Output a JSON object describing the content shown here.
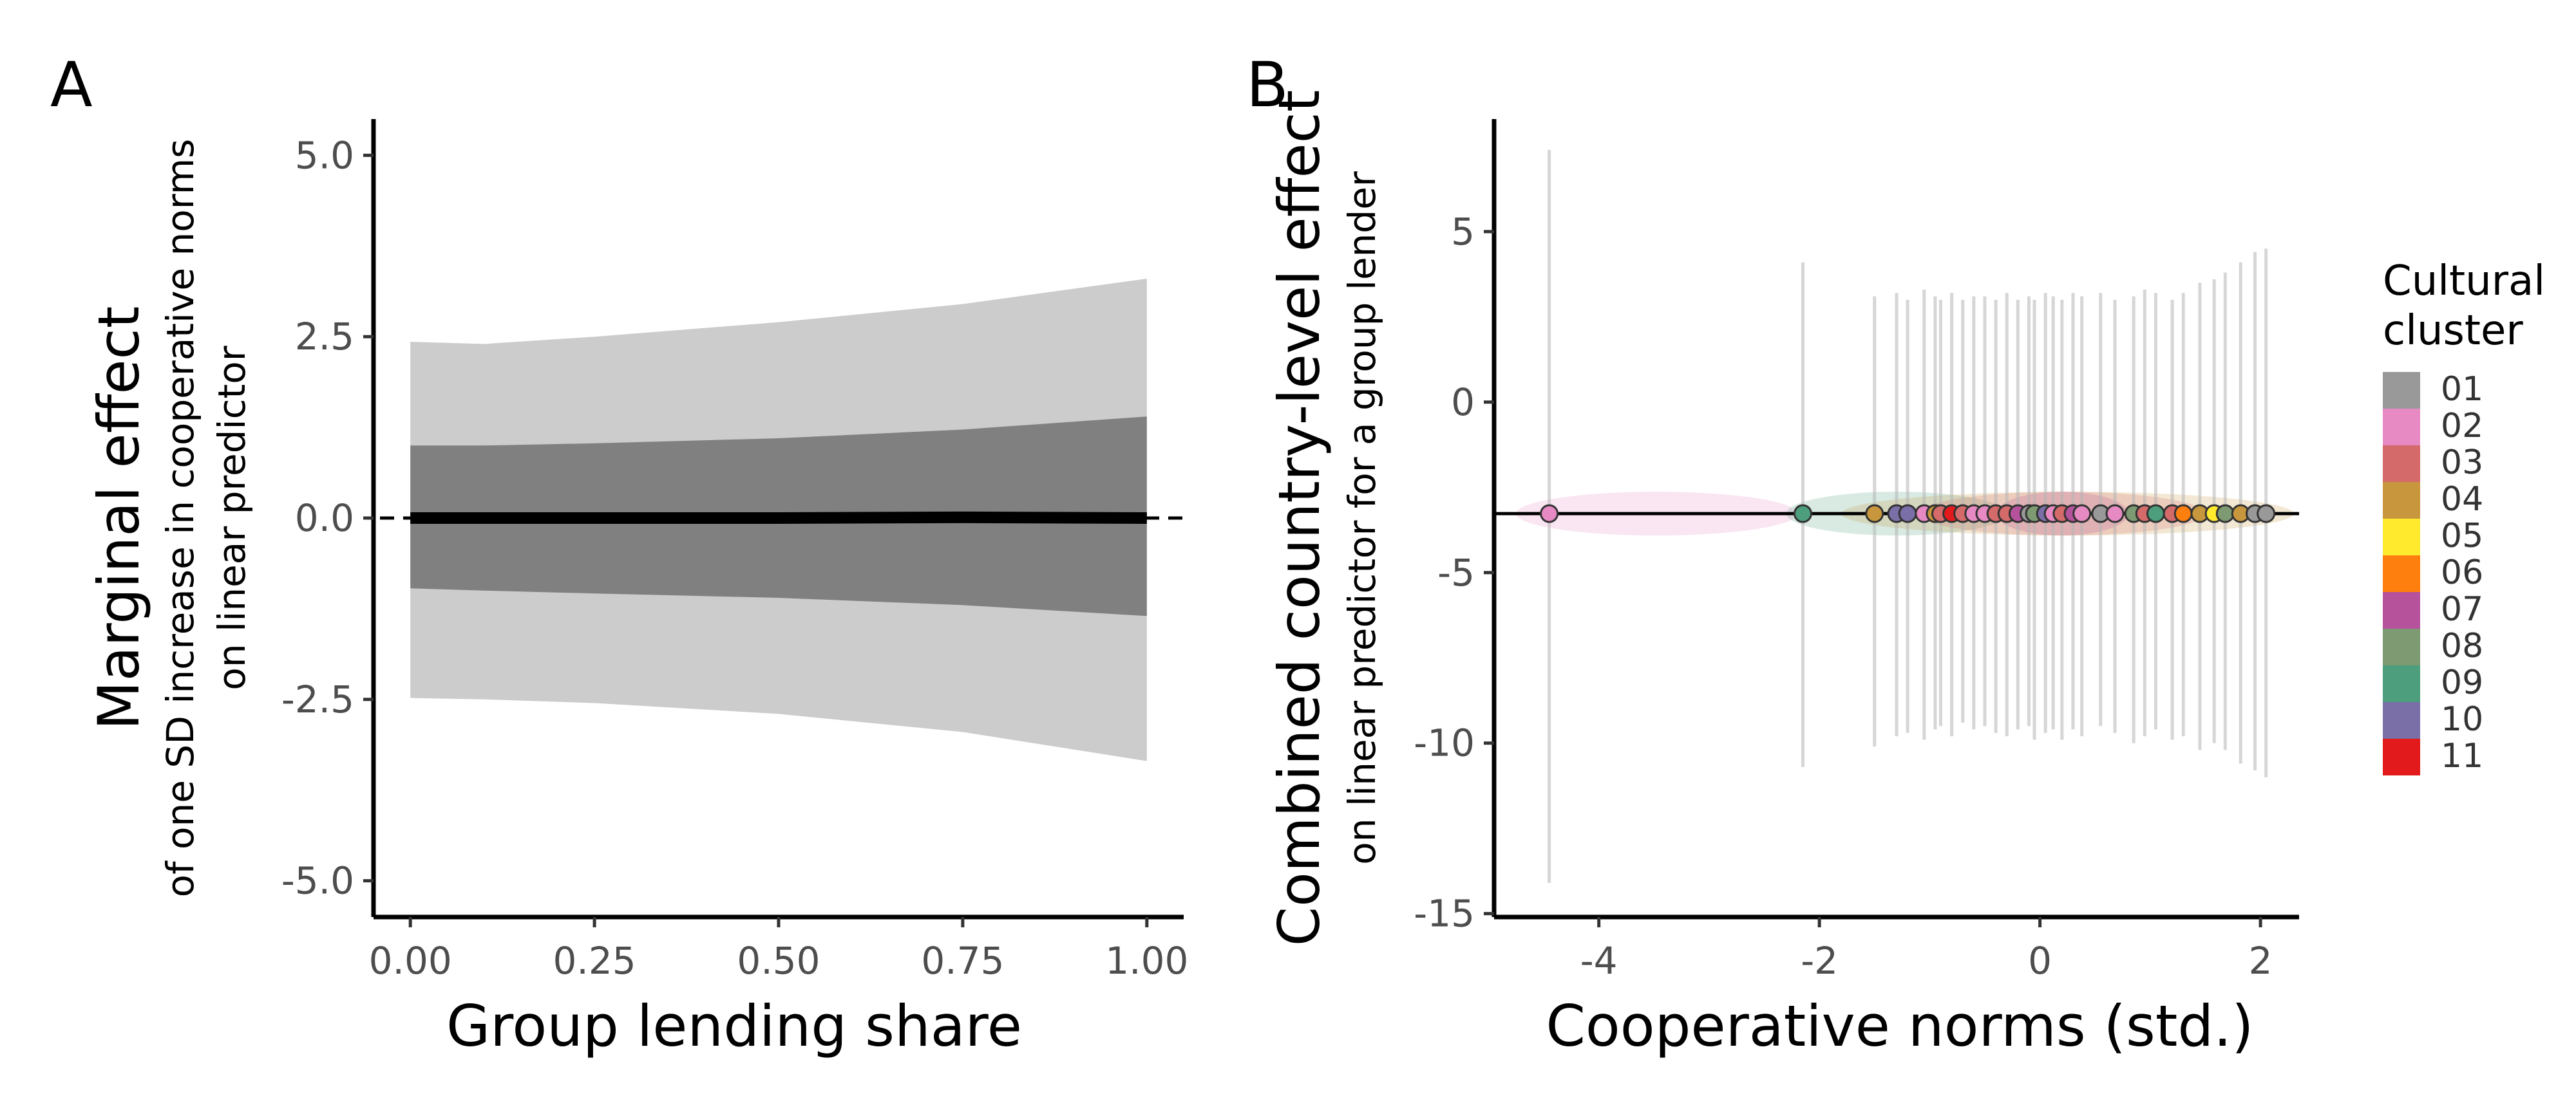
{
  "chart_data": [
    {
      "panel": "A",
      "type": "line",
      "xlabel": "Group lending share",
      "ylabel": "Marginal effect",
      "ylabel_sub": [
        "of one SD increase in cooperative norms",
        "on linear predictor"
      ],
      "xlim": [
        -0.05,
        1.05
      ],
      "ylim": [
        -5.5,
        5.5
      ],
      "x_ticks": [
        "0.00",
        "0.25",
        "0.50",
        "0.75",
        "1.00"
      ],
      "x_tick_values": [
        0,
        0.25,
        0.5,
        0.75,
        1
      ],
      "y_ticks": [
        "-5.0",
        "-2.5",
        "0.0",
        "2.5",
        "5.0"
      ],
      "y_tick_values": [
        -5,
        -2.5,
        0,
        2.5,
        5
      ],
      "reference_line_y": 0,
      "x": [
        0,
        0.1,
        0.25,
        0.5,
        0.75,
        1.0
      ],
      "mean": [
        0.0,
        0.0,
        0.0,
        0.0,
        0.01,
        0.0
      ],
      "inner_band_low": [
        -0.97,
        -1.0,
        -1.04,
        -1.1,
        -1.2,
        -1.35
      ],
      "inner_band_high": [
        1.0,
        1.0,
        1.03,
        1.1,
        1.22,
        1.4
      ],
      "outer_band_low": [
        -2.48,
        -2.5,
        -2.55,
        -2.7,
        -2.95,
        -3.35
      ],
      "outer_band_high": [
        2.43,
        2.4,
        2.5,
        2.7,
        2.95,
        3.3
      ],
      "colors": {
        "inner": "#808080",
        "outer": "#cccccc",
        "line": "#000000"
      }
    },
    {
      "panel": "B",
      "type": "scatter",
      "xlabel": "Cooperative norms (std.)",
      "ylabel": "Combined country-level effect",
      "ylabel_sub": "on linear predictor for a group lender",
      "xlim": [
        -4.95,
        2.35
      ],
      "ylim": [
        -15.1,
        8.3
      ],
      "x_ticks": [
        "-4",
        "-2",
        "0",
        "2"
      ],
      "x_tick_values": [
        -4,
        -2,
        0,
        2
      ],
      "y_ticks": [
        "-15",
        "-10",
        "-5",
        "0",
        "5"
      ],
      "y_tick_values": [
        -15,
        -10,
        -5,
        0,
        5
      ],
      "fitted_line_y": -3.27,
      "legend": {
        "title": [
          "Cultural",
          "cluster"
        ],
        "entries": [
          {
            "label": "01",
            "color": "#999999"
          },
          {
            "label": "02",
            "color": "#e78ac3"
          },
          {
            "label": "03",
            "color": "#d46a6a"
          },
          {
            "label": "04",
            "color": "#c8963c"
          },
          {
            "label": "05",
            "color": "#ffea2e"
          },
          {
            "label": "06",
            "color": "#ff7f0e"
          },
          {
            "label": "07",
            "color": "#b5529b"
          },
          {
            "label": "08",
            "color": "#7d9a72"
          },
          {
            "label": "09",
            "color": "#4c9e7c"
          },
          {
            "label": "10",
            "color": "#7b6fa8"
          },
          {
            "label": "11",
            "color": "#e31a1c"
          }
        ]
      },
      "cluster_regions": [
        {
          "cluster": "02",
          "x": [
            -4.75,
            -2.2
          ]
        },
        {
          "cluster": "09",
          "x": [
            -2.3,
            -0.3
          ]
        },
        {
          "cluster": "04",
          "x": [
            -1.8,
            2.3
          ]
        },
        {
          "cluster": "03",
          "x": [
            -1.1,
            1.5
          ]
        },
        {
          "cluster": "07",
          "x": [
            -0.4,
            0.8
          ]
        }
      ],
      "points": [
        {
          "x": -4.45,
          "y": -3.27,
          "low": -14.1,
          "high": 7.4,
          "cluster": "02"
        },
        {
          "x": -2.15,
          "y": -3.27,
          "low": -10.7,
          "high": 4.1,
          "cluster": "09"
        },
        {
          "x": -1.5,
          "y": -3.27,
          "low": -10.1,
          "high": 3.1,
          "cluster": "04"
        },
        {
          "x": -1.3,
          "y": -3.27,
          "low": -9.8,
          "high": 3.2,
          "cluster": "10"
        },
        {
          "x": -1.2,
          "y": -3.27,
          "low": -9.7,
          "high": 3.0,
          "cluster": "10"
        },
        {
          "x": -1.05,
          "y": -3.27,
          "low": -9.9,
          "high": 3.3,
          "cluster": "02"
        },
        {
          "x": -0.95,
          "y": -3.27,
          "low": -9.6,
          "high": 3.1,
          "cluster": "04"
        },
        {
          "x": -0.9,
          "y": -3.27,
          "low": -9.5,
          "high": 3.0,
          "cluster": "03"
        },
        {
          "x": -0.8,
          "y": -3.27,
          "low": -9.8,
          "high": 3.2,
          "cluster": "11"
        },
        {
          "x": -0.7,
          "y": -3.27,
          "low": -9.4,
          "high": 3.0,
          "cluster": "03"
        },
        {
          "x": -0.6,
          "y": -3.27,
          "low": -9.6,
          "high": 3.1,
          "cluster": "02"
        },
        {
          "x": -0.5,
          "y": -3.27,
          "low": -9.5,
          "high": 3.1,
          "cluster": "02"
        },
        {
          "x": -0.4,
          "y": -3.27,
          "low": -9.7,
          "high": 3.0,
          "cluster": "03"
        },
        {
          "x": -0.3,
          "y": -3.27,
          "low": -9.8,
          "high": 3.2,
          "cluster": "03"
        },
        {
          "x": -0.2,
          "y": -3.27,
          "low": -9.6,
          "high": 3.0,
          "cluster": "07"
        },
        {
          "x": -0.1,
          "y": -3.27,
          "low": -9.5,
          "high": 3.1,
          "cluster": "01"
        },
        {
          "x": -0.05,
          "y": -3.27,
          "low": -9.9,
          "high": 3.0,
          "cluster": "08"
        },
        {
          "x": 0.05,
          "y": -3.27,
          "low": -9.7,
          "high": 3.2,
          "cluster": "10"
        },
        {
          "x": 0.12,
          "y": -3.27,
          "low": -9.6,
          "high": 3.1,
          "cluster": "02"
        },
        {
          "x": 0.2,
          "y": -3.27,
          "low": -9.9,
          "high": 3.0,
          "cluster": "03"
        },
        {
          "x": 0.3,
          "y": -3.27,
          "low": -9.6,
          "high": 3.2,
          "cluster": "07"
        },
        {
          "x": 0.38,
          "y": -3.27,
          "low": -9.8,
          "high": 3.1,
          "cluster": "02"
        },
        {
          "x": 0.55,
          "y": -3.27,
          "low": -9.5,
          "high": 3.2,
          "cluster": "01"
        },
        {
          "x": 0.68,
          "y": -3.27,
          "low": -9.7,
          "high": 3.0,
          "cluster": "02"
        },
        {
          "x": 0.85,
          "y": -3.27,
          "low": -10.0,
          "high": 3.1,
          "cluster": "08"
        },
        {
          "x": 0.95,
          "y": -3.27,
          "low": -9.8,
          "high": 3.3,
          "cluster": "03"
        },
        {
          "x": 1.05,
          "y": -3.27,
          "low": -9.6,
          "high": 3.2,
          "cluster": "09"
        },
        {
          "x": 1.2,
          "y": -3.27,
          "low": -9.9,
          "high": 3.0,
          "cluster": "03"
        },
        {
          "x": 1.3,
          "y": -3.27,
          "low": -9.8,
          "high": 3.2,
          "cluster": "06"
        },
        {
          "x": 1.45,
          "y": -3.27,
          "low": -10.2,
          "high": 3.5,
          "cluster": "04"
        },
        {
          "x": 1.58,
          "y": -3.27,
          "low": -10.0,
          "high": 3.6,
          "cluster": "05"
        },
        {
          "x": 1.68,
          "y": -3.27,
          "low": -10.2,
          "high": 3.8,
          "cluster": "08"
        },
        {
          "x": 1.82,
          "y": -3.27,
          "low": -10.6,
          "high": 4.1,
          "cluster": "04"
        },
        {
          "x": 1.95,
          "y": -3.27,
          "low": -10.8,
          "high": 4.4,
          "cluster": "01"
        },
        {
          "x": 2.05,
          "y": -3.27,
          "low": -11.0,
          "high": 4.5,
          "cluster": "01"
        }
      ]
    }
  ]
}
